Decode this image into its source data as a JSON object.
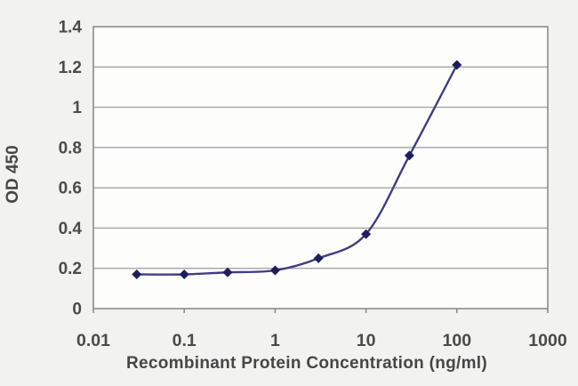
{
  "chart_data": {
    "type": "line",
    "title": "",
    "xlabel": "Recombinant Protein Concentration (ng/ml)",
    "ylabel": "OD 450",
    "x_scale": "log",
    "y_scale": "linear",
    "xlim": [
      0.01,
      1000
    ],
    "ylim": [
      0,
      1.4
    ],
    "grid": "horizontal",
    "legend": "none",
    "marker": "diamond",
    "x": [
      0.03,
      0.1,
      0.3,
      1,
      3,
      10,
      30,
      100
    ],
    "y": [
      0.17,
      0.17,
      0.18,
      0.19,
      0.25,
      0.37,
      0.76,
      1.21
    ],
    "x_ticks": [
      0.01,
      0.1,
      1,
      10,
      100,
      1000
    ],
    "x_tick_labels": [
      "0.01",
      "0.1",
      "1",
      "10",
      "100",
      "1000"
    ],
    "y_ticks": [
      0,
      0.2,
      0.4,
      0.6,
      0.8,
      1,
      1.2,
      1.4
    ],
    "y_tick_labels": [
      "0",
      "0.2",
      "0.4",
      "0.6",
      "0.8",
      "1",
      "1.2",
      "1.4"
    ],
    "colors": {
      "line": "#3e3e80",
      "marker": "#1e1e5f",
      "grid": "#a3a3a3",
      "border": "#8c8c8c",
      "text": "#4a4a4a",
      "plot_bg": "#fdfdfc",
      "page_bg": "#f2f3f0"
    }
  }
}
